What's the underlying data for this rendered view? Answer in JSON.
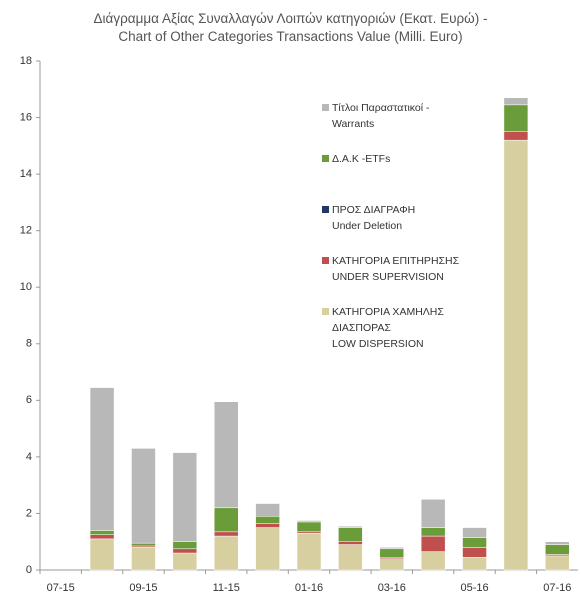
{
  "chart_data": {
    "type": "stacked-bar",
    "title": "Διάγραμμα Αξίας Συναλλαγών Λοιπών κατηγοριών (Εκατ.  Ευρώ) -\nChart of Other Categories Transactions Value (Milli. Euro)",
    "categories": [
      "07-15",
      null,
      "09-15",
      null,
      "11-15",
      null,
      "01-16",
      null,
      "03-16",
      null,
      "05-16",
      null,
      "07-16"
    ],
    "ylim": [
      0,
      18
    ],
    "yticks": [
      0,
      2,
      4,
      6,
      8,
      10,
      12,
      14,
      16,
      18
    ],
    "series": [
      {
        "name": "ΚΑΤΗΓΟΡΙΑ ΧΑΜΗΛΗΣ\nΔΙΑΣΠΟΡΑΣ\nLOW DISPERSION",
        "color": "#d8cfa0",
        "values": [
          0,
          1.1,
          0.8,
          0.6,
          1.2,
          1.5,
          1.3,
          0.9,
          0.4,
          0.65,
          0.45,
          15.2,
          0.5
        ]
      },
      {
        "name": "ΚΑΤΗΓΟΡΙΑ ΕΠΙΤΗΡΗΣΗΣ\nUNDER SUPERVISION",
        "color": "#c0504d",
        "values": [
          0,
          0.15,
          0.05,
          0.15,
          0.15,
          0.15,
          0.05,
          0.1,
          0.05,
          0.55,
          0.35,
          0.3,
          0.05
        ]
      },
      {
        "name": "ΠΡΟΣ ΔΙΑΓΡΑΦΗ\nUnder Deletion",
        "color": "#1f3864",
        "values": [
          0,
          0,
          0,
          0,
          0,
          0,
          0,
          0,
          0,
          0,
          0,
          0,
          0
        ]
      },
      {
        "name": "Δ.Α.Κ -ETFs",
        "color": "#6a9c3a",
        "values": [
          0,
          0.15,
          0.1,
          0.25,
          0.85,
          0.25,
          0.35,
          0.5,
          0.3,
          0.3,
          0.35,
          0.95,
          0.35
        ]
      },
      {
        "name": "Τίτλοι Παραστατικοί -\nWarrants",
        "color": "#b8b8b8",
        "values": [
          0,
          5.05,
          3.35,
          3.15,
          3.75,
          0.45,
          0.05,
          0.05,
          0.05,
          1.0,
          0.35,
          0.25,
          0.1
        ]
      }
    ]
  }
}
